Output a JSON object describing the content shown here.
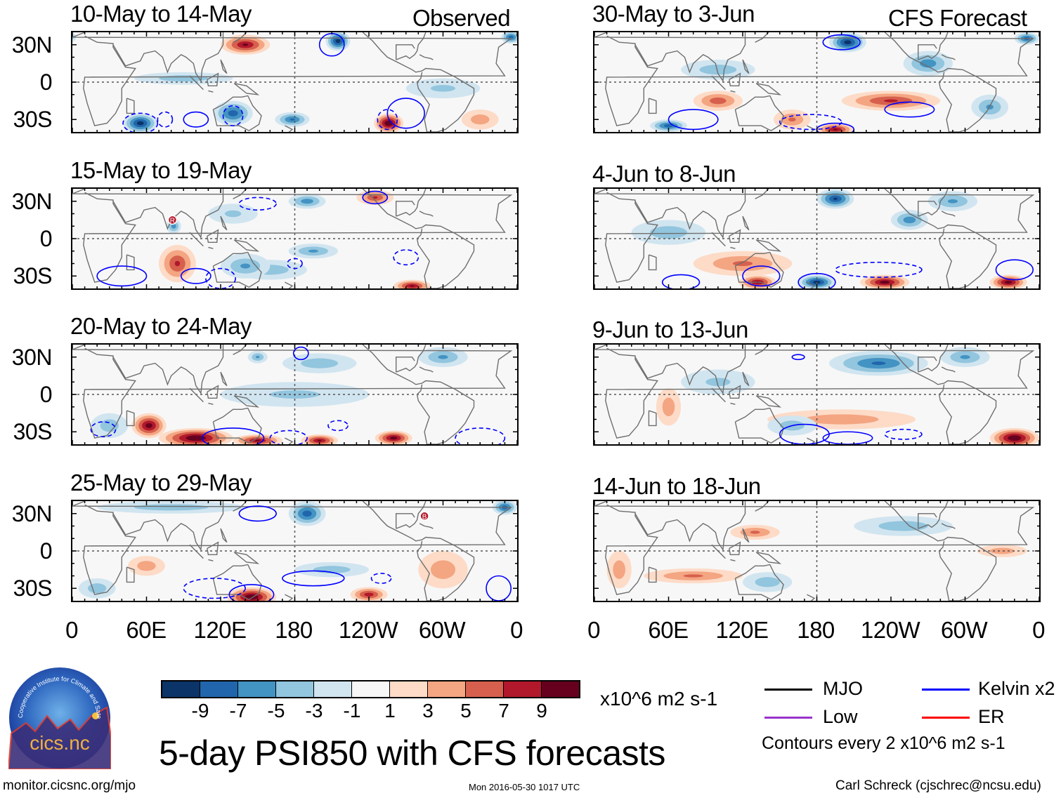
{
  "colors": {
    "levels": [
      "#0b3468",
      "#2166ac",
      "#4393c3",
      "#92c5de",
      "#d1e5f0",
      "#f7f7f7",
      "#fddbc7",
      "#f4a582",
      "#d6604d",
      "#b2182b",
      "#67001f"
    ],
    "kelvin": "#0000ff",
    "mjo": "#000000",
    "low": "#9933cc",
    "er": "#ff0000",
    "coast": "#6e6e6e"
  },
  "column_labels": {
    "left": "Observed",
    "right": "CFS Forecast"
  },
  "lat_labels": [
    "30N",
    "0",
    "30S"
  ],
  "lon_labels": [
    "0",
    "60E",
    "120E",
    "180",
    "120W",
    "60W",
    "0"
  ],
  "panels": [
    {
      "title": "10-May to 14-May",
      "anoms": [
        [
          140,
          30,
          8,
          20,
          8
        ],
        [
          215,
          33,
          -9,
          10,
          8
        ],
        [
          355,
          36,
          -7,
          8,
          5
        ],
        [
          55,
          -33,
          -9,
          14,
          8
        ],
        [
          130,
          -25,
          -7,
          16,
          10
        ],
        [
          178,
          -30,
          -6,
          14,
          6
        ],
        [
          256,
          -33,
          10,
          12,
          8
        ],
        [
          90,
          3,
          -3,
          40,
          5
        ],
        [
          300,
          -5,
          -2,
          30,
          8
        ],
        [
          330,
          -30,
          3,
          15,
          8
        ]
      ],
      "contours": [
        [
          270,
          -25,
          15,
          12,
          0
        ],
        [
          210,
          30,
          10,
          9,
          0
        ],
        [
          55,
          -33,
          14,
          8,
          1
        ],
        [
          75,
          -30,
          6,
          6,
          1
        ],
        [
          100,
          -30,
          10,
          6,
          0
        ],
        [
          130,
          -27,
          8,
          8,
          1
        ],
        [
          255,
          -30,
          8,
          8,
          1
        ]
      ]
    },
    {
      "title": "15-May to 19-May",
      "anoms": [
        [
          245,
          33,
          6,
          15,
          6
        ],
        [
          190,
          30,
          -5,
          15,
          6
        ],
        [
          82,
          10,
          -5,
          6,
          6
        ],
        [
          85,
          -20,
          6,
          15,
          15
        ],
        [
          275,
          -38,
          8,
          15,
          5
        ],
        [
          195,
          -10,
          -4,
          20,
          6
        ],
        [
          160,
          -25,
          -3,
          30,
          8
        ],
        [
          140,
          -22,
          -4,
          20,
          10
        ],
        [
          130,
          20,
          -2,
          20,
          8
        ]
      ],
      "contours": [
        [
          245,
          33,
          10,
          5,
          0
        ],
        [
          150,
          28,
          15,
          5,
          1
        ],
        [
          40,
          -30,
          20,
          8,
          0
        ],
        [
          100,
          -30,
          12,
          6,
          0
        ],
        [
          120,
          -32,
          12,
          8,
          1
        ],
        [
          270,
          -15,
          10,
          6,
          1
        ],
        [
          180,
          -20,
          6,
          4,
          1
        ]
      ],
      "markers": [
        [
          81,
          15,
          "R"
        ]
      ]
    },
    {
      "title": "20-May to 24-May",
      "anoms": [
        [
          62,
          -25,
          9,
          14,
          10
        ],
        [
          100,
          -35,
          10,
          30,
          8
        ],
        [
          150,
          -37,
          8,
          20,
          5
        ],
        [
          200,
          -37,
          8,
          15,
          5
        ],
        [
          260,
          -35,
          9,
          15,
          6
        ],
        [
          150,
          30,
          -4,
          8,
          5
        ],
        [
          300,
          30,
          -4,
          20,
          8
        ],
        [
          30,
          -25,
          -3,
          15,
          10
        ],
        [
          180,
          0,
          -2,
          60,
          10
        ],
        [
          200,
          25,
          -3,
          30,
          8
        ]
      ],
      "contours": [
        [
          185,
          33,
          6,
          5,
          0
        ],
        [
          25,
          -28,
          10,
          6,
          1
        ],
        [
          130,
          -35,
          25,
          8,
          0
        ],
        [
          175,
          -35,
          15,
          6,
          1
        ],
        [
          330,
          -35,
          20,
          8,
          1
        ],
        [
          215,
          -25,
          8,
          4,
          1
        ]
      ]
    },
    {
      "title": "25-May to 29-May",
      "anoms": [
        [
          80,
          35,
          -3,
          60,
          5
        ],
        [
          190,
          30,
          -7,
          15,
          10
        ],
        [
          350,
          35,
          -7,
          10,
          6
        ],
        [
          145,
          -37,
          10,
          20,
          8
        ],
        [
          240,
          -35,
          7,
          15,
          6
        ],
        [
          300,
          -15,
          3,
          20,
          15
        ],
        [
          210,
          -15,
          -3,
          30,
          6
        ],
        [
          60,
          -12,
          3,
          15,
          8
        ],
        [
          20,
          -30,
          -3,
          15,
          8
        ]
      ],
      "contours": [
        [
          150,
          30,
          15,
          6,
          0
        ],
        [
          195,
          -22,
          25,
          6,
          0
        ],
        [
          145,
          -35,
          18,
          8,
          0
        ],
        [
          115,
          -30,
          25,
          8,
          1
        ],
        [
          250,
          -22,
          8,
          4,
          1
        ],
        [
          345,
          -30,
          10,
          10,
          0
        ]
      ],
      "markers": [
        [
          285,
          28,
          "B"
        ]
      ]
    },
    {
      "title": "30-May to 3-Jun",
      "anoms": [
        [
          205,
          32,
          -9,
          15,
          8
        ],
        [
          270,
          15,
          -5,
          20,
          10
        ],
        [
          100,
          10,
          -3,
          30,
          8
        ],
        [
          100,
          -15,
          5,
          20,
          8
        ],
        [
          240,
          -15,
          6,
          40,
          8
        ],
        [
          60,
          -35,
          -7,
          15,
          5
        ],
        [
          195,
          -38,
          8,
          15,
          5
        ],
        [
          320,
          -20,
          -4,
          15,
          10
        ],
        [
          160,
          -30,
          4,
          15,
          8
        ],
        [
          350,
          35,
          -7,
          10,
          5
        ]
      ],
      "contours": [
        [
          200,
          32,
          15,
          6,
          0
        ],
        [
          255,
          -22,
          20,
          6,
          0
        ],
        [
          80,
          -30,
          20,
          8,
          0
        ],
        [
          175,
          -32,
          25,
          6,
          1
        ],
        [
          195,
          -38,
          15,
          5,
          0
        ]
      ]
    },
    {
      "title": "4-Jun to 8-Jun",
      "anoms": [
        [
          195,
          32,
          -8,
          15,
          8
        ],
        [
          255,
          15,
          -5,
          15,
          8
        ],
        [
          120,
          -20,
          4,
          40,
          10
        ],
        [
          132,
          -35,
          8,
          15,
          6
        ],
        [
          180,
          -35,
          -9,
          15,
          6
        ],
        [
          235,
          -35,
          9,
          20,
          6
        ],
        [
          335,
          -35,
          9,
          15,
          6
        ],
        [
          290,
          30,
          -4,
          20,
          8
        ],
        [
          60,
          5,
          -3,
          30,
          10
        ]
      ],
      "contours": [
        [
          180,
          -35,
          15,
          7,
          0
        ],
        [
          135,
          -30,
          15,
          8,
          0
        ],
        [
          230,
          -25,
          35,
          6,
          1
        ],
        [
          70,
          -35,
          15,
          6,
          0
        ],
        [
          340,
          -25,
          15,
          8,
          0
        ]
      ]
    },
    {
      "title": "9-Jun to 13-Jun",
      "anoms": [
        [
          230,
          25,
          -6,
          40,
          10
        ],
        [
          300,
          30,
          -4,
          20,
          8
        ],
        [
          100,
          10,
          -2,
          30,
          10
        ],
        [
          200,
          -20,
          3,
          60,
          8
        ],
        [
          340,
          -35,
          10,
          20,
          8
        ],
        [
          60,
          -10,
          3,
          10,
          15
        ],
        [
          160,
          -25,
          -3,
          20,
          8
        ]
      ],
      "contours": [
        [
          170,
          -32,
          20,
          8,
          0
        ],
        [
          205,
          -35,
          20,
          5,
          0
        ],
        [
          250,
          -32,
          15,
          4,
          1
        ],
        [
          165,
          30,
          5,
          2,
          0
        ]
      ]
    },
    {
      "title": "14-Jun to 18-Jun",
      "anoms": [
        [
          130,
          15,
          4,
          20,
          6
        ],
        [
          250,
          20,
          -3,
          40,
          8
        ],
        [
          80,
          -20,
          4,
          40,
          6
        ],
        [
          140,
          -25,
          -3,
          20,
          8
        ],
        [
          330,
          0,
          3,
          20,
          5
        ],
        [
          20,
          -15,
          3,
          10,
          15
        ]
      ],
      "contours": []
    }
  ],
  "colorbar": {
    "labels": [
      "-9",
      "-7",
      "-5",
      "-3",
      "-1",
      "1",
      "3",
      "5",
      "7",
      "9"
    ],
    "units": "x10^6 m2 s-1"
  },
  "title": "5-day PSI850 with CFS forecasts",
  "legend": {
    "mjo": "MJO",
    "kelvin": "Kelvin x2",
    "low": "Low",
    "er": "ER",
    "contours_note": "Contours every 2 x10^6 m2 s-1"
  },
  "logo": {
    "text": "cics.nc",
    "ring_text": "Cooperative Institute for Climate and Satellites"
  },
  "footer": {
    "url": "monitor.cicsnc.org/mjo",
    "timestamp": "Mon 2016-05-30 1017 UTC",
    "author": "Carl Schreck (cjschrec@ncsu.edu)"
  }
}
